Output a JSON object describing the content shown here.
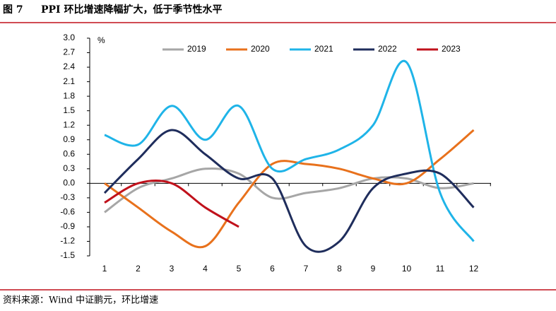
{
  "chart_data": {
    "type": "line",
    "figure_label": "图 7",
    "title": "PPI 环比增速降幅扩大，低于季节性水平",
    "y_unit": "%",
    "source": "资料来源：Wind   中证鹏元，环比增速",
    "categories": [
      "1",
      "2",
      "3",
      "4",
      "5",
      "6",
      "7",
      "8",
      "9",
      "10",
      "11",
      "12"
    ],
    "series": [
      {
        "name": "2019",
        "color": "#a6a6a6",
        "values": [
          -0.6,
          -0.1,
          0.1,
          0.3,
          0.2,
          -0.3,
          -0.2,
          -0.1,
          0.1,
          0.1,
          -0.1,
          0.0
        ]
      },
      {
        "name": "2020",
        "color": "#e8711c",
        "values": [
          0.0,
          -0.5,
          -1.0,
          -1.3,
          -0.4,
          0.4,
          0.4,
          0.3,
          0.1,
          0.0,
          0.5,
          1.1
        ]
      },
      {
        "name": "2021",
        "color": "#1fb4e8",
        "values": [
          1.0,
          0.8,
          1.6,
          0.9,
          1.6,
          0.3,
          0.5,
          0.7,
          1.2,
          2.5,
          -0.2,
          -1.2
        ]
      },
      {
        "name": "2022",
        "color": "#1f2d5c",
        "values": [
          -0.2,
          0.5,
          1.1,
          0.6,
          0.1,
          0.1,
          -1.3,
          -1.2,
          -0.1,
          0.2,
          0.2,
          -0.5
        ]
      },
      {
        "name": "2023",
        "color": "#c0111b",
        "values": [
          -0.4,
          0.0,
          0.0,
          -0.5,
          -0.9,
          null,
          null,
          null,
          null,
          null,
          null,
          null
        ]
      }
    ],
    "ylim": [
      -1.5,
      3.0
    ],
    "yticks": [
      {
        "value": 3.0,
        "label": "3.0"
      },
      2.7,
      2.4,
      2.1,
      1.8,
      1.5,
      1.2,
      0.9,
      0.6,
      0.3,
      {
        "value": 0.0,
        "label": "0.0"
      },
      -0.3,
      -0.6,
      -0.9,
      -1.2,
      -1.5
    ],
    "legend": "top"
  }
}
